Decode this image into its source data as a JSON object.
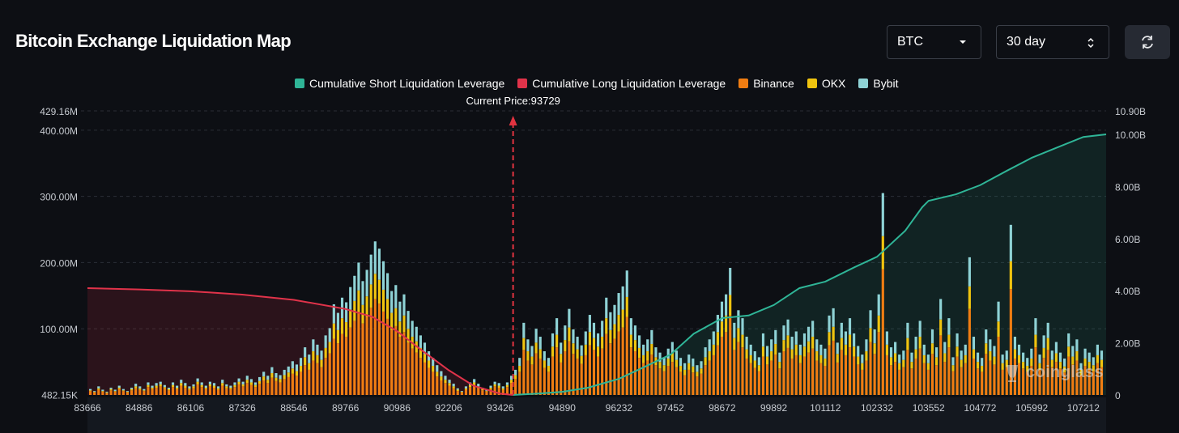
{
  "header": {
    "title": "Bitcoin Exchange Liquidation Map",
    "coin_select": "BTC",
    "range_select": "30 day"
  },
  "icons": {
    "coin_caret": "caret-down-icon",
    "range_caret": "up-down-chevron-icon",
    "refresh": "refresh-icon"
  },
  "watermark": "coinglass",
  "colors": {
    "background": "#0d0f14",
    "short_cum": "#2fb597",
    "long_cum": "#e0334a",
    "binance": "#f07d12",
    "okx": "#f0c40f",
    "bybit": "#8fd3d6",
    "current_price": "#e23340"
  },
  "chart_data": {
    "type": "bar",
    "title": "Bitcoin Exchange Liquidation Map",
    "legend": [
      "Cumulative Short Liquidation Leverage",
      "Cumulative Long Liquidation Leverage",
      "Binance",
      "OKX",
      "Bybit"
    ],
    "current_price_label": "Current Price:93729",
    "current_price": 93729,
    "x_range": [
      83666,
      107750
    ],
    "x_ticks": [
      "83666",
      "84886",
      "86106",
      "87326",
      "88546",
      "89766",
      "90986",
      "92206",
      "93426",
      "94890",
      "96232",
      "97452",
      "98672",
      "99892",
      "101112",
      "102332",
      "103552",
      "104772",
      "105992",
      "107212"
    ],
    "x_tick_values": [
      83666,
      84886,
      86106,
      87326,
      88546,
      89766,
      90986,
      92206,
      93426,
      94890,
      96232,
      97452,
      98672,
      99892,
      101112,
      102332,
      103552,
      104772,
      105992,
      107212
    ],
    "y_left": {
      "ticks": [
        "429.16M",
        "400.00M",
        "300.00M",
        "200.00M",
        "100.00M",
        "482.15K"
      ],
      "tick_values": [
        429.16,
        400,
        300,
        200,
        100,
        0.48
      ],
      "range": [
        0,
        429.16
      ],
      "unit": "M"
    },
    "y_right": {
      "ticks": [
        "10.90B",
        "10.00B",
        "8.00B",
        "6.00B",
        "4.00B",
        "2.00B",
        "0"
      ],
      "tick_values": [
        10.9,
        10,
        8,
        6,
        4,
        2,
        0
      ],
      "range": [
        0,
        10.9
      ],
      "unit": "B"
    },
    "series": [
      {
        "name": "Binance",
        "stack": [
          6,
          4,
          8,
          5,
          3,
          7,
          5,
          9,
          6,
          4,
          7,
          10,
          8,
          6,
          12,
          9,
          11,
          13,
          10,
          7,
          12,
          9,
          14,
          11,
          8,
          10,
          16,
          12,
          9,
          13,
          11,
          8,
          14,
          10,
          9,
          12,
          16,
          13,
          18,
          15,
          12,
          17,
          22,
          18,
          26,
          21,
          19,
          24,
          27,
          32,
          29,
          35,
          45,
          38,
          52,
          48,
          42,
          56,
          63,
          85,
          78,
          92,
          88,
          102,
          112,
          125,
          108,
          118,
          132,
          145,
          138,
          126,
          115,
          98,
          104,
          88,
          95,
          79,
          70,
          64,
          56,
          49,
          41,
          35,
          28,
          22,
          18,
          14,
          10,
          6,
          4,
          8,
          12,
          15,
          10,
          7,
          5,
          9,
          13,
          11,
          8,
          12,
          18,
          24,
          35,
          68,
          52,
          46,
          63,
          55,
          41,
          35,
          58,
          72,
          49,
          66,
          81,
          62,
          55,
          47,
          60,
          75,
          68,
          58,
          70,
          92,
          78,
          85,
          96,
          102,
          118,
          72,
          66,
          56,
          48,
          52,
          61,
          45,
          40,
          36,
          44,
          50,
          42,
          35,
          30,
          38,
          34,
          28,
          32,
          45,
          52,
          60,
          75,
          88,
          95,
          120,
          68,
          80,
          72,
          55,
          48,
          41,
          36,
          58,
          46,
          52,
          61,
          40,
          66,
          71,
          55,
          60,
          48,
          58,
          64,
          70,
          52,
          48,
          44,
          75,
          82,
          49,
          68,
          60,
          72,
          58,
          46,
          38,
          52,
          80,
          62,
          95,
          190,
          60,
          45,
          50,
          38,
          42,
          68,
          40,
          55,
          70,
          48,
          38,
          62,
          45,
          90,
          50,
          72,
          36,
          58,
          42,
          48,
          130,
          55,
          40,
          35,
          62,
          52,
          46,
          88,
          38,
          42,
          160,
          55,
          48,
          40,
          35,
          44,
          72,
          38,
          56,
          68,
          42,
          50,
          40,
          34,
          58,
          46,
          52,
          30,
          44,
          40,
          36,
          48,
          42
        ]
      },
      {
        "name": "OKX",
        "stack": [
          1,
          1,
          2,
          1,
          1,
          2,
          1,
          2,
          1,
          1,
          2,
          3,
          2,
          1,
          3,
          2,
          3,
          3,
          2,
          2,
          3,
          2,
          4,
          3,
          2,
          3,
          4,
          3,
          2,
          3,
          3,
          2,
          4,
          3,
          2,
          3,
          4,
          3,
          5,
          4,
          3,
          4,
          6,
          5,
          7,
          5,
          5,
          6,
          7,
          8,
          7,
          9,
          12,
          10,
          14,
          12,
          11,
          15,
          17,
          23,
          20,
          24,
          22,
          27,
          30,
          33,
          28,
          31,
          35,
          38,
          36,
          33,
          30,
          26,
          27,
          23,
          25,
          21,
          18,
          17,
          15,
          13,
          11,
          9,
          7,
          6,
          5,
          4,
          3,
          2,
          1,
          2,
          3,
          4,
          3,
          2,
          1,
          2,
          3,
          3,
          2,
          3,
          5,
          6,
          9,
          18,
          14,
          12,
          16,
          14,
          11,
          9,
          15,
          19,
          13,
          17,
          21,
          16,
          14,
          12,
          16,
          20,
          18,
          15,
          18,
          24,
          20,
          22,
          25,
          27,
          30,
          19,
          17,
          15,
          12,
          14,
          16,
          12,
          10,
          9,
          11,
          13,
          11,
          9,
          8,
          10,
          9,
          7,
          8,
          12,
          14,
          16,
          20,
          23,
          25,
          31,
          18,
          21,
          19,
          14,
          12,
          11,
          9,
          15,
          12,
          14,
          16,
          10,
          17,
          19,
          14,
          16,
          12,
          15,
          17,
          18,
          14,
          12,
          11,
          20,
          21,
          13,
          18,
          16,
          19,
          15,
          12,
          10,
          14,
          21,
          16,
          25,
          50,
          16,
          12,
          13,
          10,
          11,
          18,
          10,
          14,
          18,
          12,
          10,
          16,
          12,
          24,
          13,
          19,
          9,
          15,
          11,
          12,
          34,
          14,
          10,
          9,
          16,
          14,
          12,
          23,
          10,
          11,
          42,
          14,
          12,
          10,
          9,
          11,
          19,
          10,
          15,
          18,
          11,
          13,
          10,
          9,
          15,
          12,
          14,
          8,
          11,
          10,
          9,
          12,
          11
        ]
      },
      {
        "name": "Bybit",
        "stack": [
          2,
          1,
          3,
          2,
          1,
          2,
          2,
          3,
          2,
          1,
          2,
          4,
          3,
          2,
          4,
          3,
          4,
          4,
          3,
          2,
          4,
          3,
          5,
          4,
          3,
          3,
          5,
          4,
          3,
          4,
          4,
          3,
          5,
          3,
          3,
          4,
          5,
          4,
          6,
          5,
          4,
          6,
          7,
          6,
          9,
          7,
          6,
          8,
          9,
          11,
          10,
          12,
          15,
          13,
          18,
          16,
          14,
          19,
          21,
          29,
          26,
          31,
          30,
          34,
          38,
          42,
          36,
          40,
          45,
          49,
          47,
          43,
          39,
          33,
          35,
          30,
          32,
          27,
          24,
          22,
          19,
          17,
          14,
          12,
          10,
          8,
          6,
          5,
          4,
          2,
          1,
          3,
          4,
          5,
          4,
          2,
          2,
          3,
          4,
          4,
          3,
          4,
          6,
          8,
          12,
          23,
          18,
          16,
          21,
          19,
          14,
          12,
          20,
          25,
          17,
          22,
          28,
          21,
          19,
          16,
          20,
          26,
          23,
          20,
          24,
          31,
          27,
          29,
          33,
          35,
          40,
          25,
          22,
          19,
          16,
          18,
          21,
          15,
          14,
          12,
          15,
          17,
          14,
          12,
          10,
          13,
          12,
          10,
          11,
          15,
          18,
          20,
          26,
          30,
          32,
          41,
          23,
          27,
          25,
          19,
          16,
          14,
          12,
          20,
          16,
          18,
          21,
          14,
          22,
          24,
          19,
          20,
          16,
          20,
          22,
          24,
          18,
          16,
          15,
          25,
          28,
          17,
          23,
          20,
          25,
          20,
          16,
          13,
          18,
          27,
          21,
          32,
          65,
          20,
          15,
          17,
          13,
          14,
          23,
          14,
          19,
          24,
          16,
          13,
          21,
          15,
          31,
          17,
          25,
          12,
          20,
          14,
          16,
          44,
          19,
          14,
          12,
          21,
          18,
          16,
          30,
          13,
          14,
          55,
          19,
          16,
          14,
          12,
          15,
          25,
          13,
          19,
          23,
          14,
          17,
          14,
          12,
          20,
          16,
          18,
          10,
          15,
          14,
          12,
          16,
          14
        ]
      }
    ],
    "cumulative_long_points": [
      [
        83666,
        4.1
      ],
      [
        84886,
        4.05
      ],
      [
        86106,
        3.98
      ],
      [
        87326,
        3.85
      ],
      [
        88546,
        3.65
      ],
      [
        89766,
        3.3
      ],
      [
        90400,
        3.0
      ],
      [
        90986,
        2.45
      ],
      [
        91500,
        1.8
      ],
      [
        92206,
        0.95
      ],
      [
        92800,
        0.35
      ],
      [
        93426,
        0.05
      ],
      [
        93729,
        0
      ]
    ],
    "cumulative_short_points": [
      [
        93729,
        0
      ],
      [
        94300,
        0.05
      ],
      [
        94890,
        0.12
      ],
      [
        95500,
        0.28
      ],
      [
        96232,
        0.62
      ],
      [
        96800,
        1.05
      ],
      [
        97452,
        1.55
      ],
      [
        98000,
        2.35
      ],
      [
        98672,
        2.95
      ],
      [
        99300,
        3.05
      ],
      [
        99892,
        3.45
      ],
      [
        100500,
        4.1
      ],
      [
        101112,
        4.35
      ],
      [
        101800,
        4.9
      ],
      [
        102332,
        5.3
      ],
      [
        103000,
        6.3
      ],
      [
        103400,
        7.2
      ],
      [
        103552,
        7.45
      ],
      [
        104200,
        7.7
      ],
      [
        104772,
        8.05
      ],
      [
        105400,
        8.6
      ],
      [
        105992,
        9.1
      ],
      [
        106600,
        9.5
      ],
      [
        107212,
        9.9
      ],
      [
        107750,
        10.0
      ]
    ]
  }
}
